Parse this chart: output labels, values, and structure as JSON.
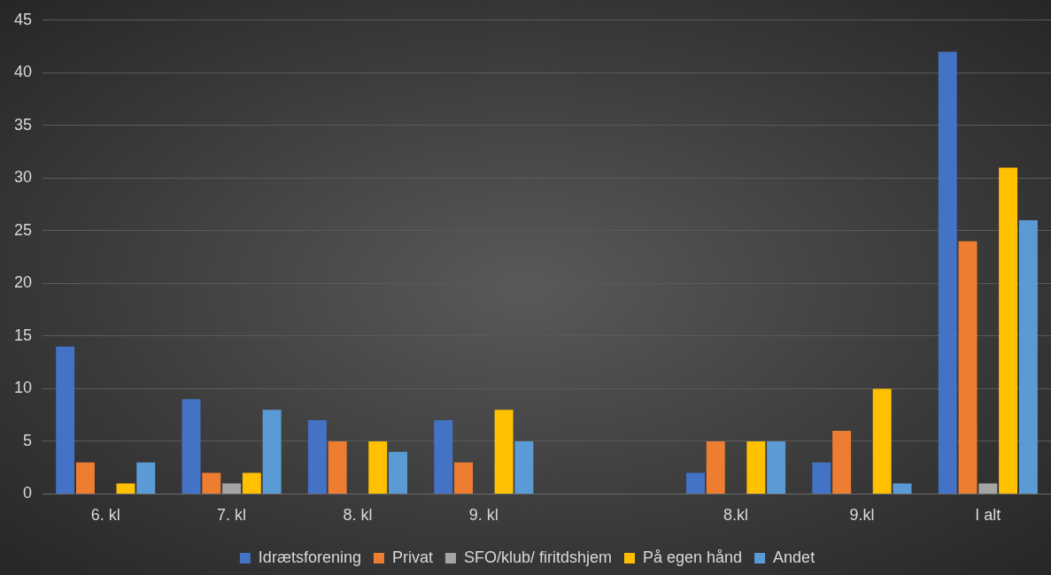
{
  "chart_data": {
    "type": "bar",
    "categories": [
      "6. kl",
      "7. kl",
      "8. kl",
      "9. kl",
      null,
      "8.kl",
      "9.kl",
      "I alt"
    ],
    "series": [
      {
        "name": "Idrætsforening",
        "color": "#4472c4",
        "values": [
          14,
          9,
          7,
          7,
          null,
          2,
          3,
          42
        ]
      },
      {
        "name": "Privat",
        "color": "#ed7d31",
        "values": [
          3,
          2,
          5,
          3,
          null,
          5,
          6,
          24
        ]
      },
      {
        "name": "SFO/klub/ firitdshjem",
        "color": "#a5a5a5",
        "values": [
          0,
          1,
          0,
          0,
          null,
          0,
          0,
          1
        ]
      },
      {
        "name": "På egen hånd",
        "color": "#ffc000",
        "values": [
          1,
          2,
          5,
          8,
          null,
          5,
          10,
          31
        ]
      },
      {
        "name": "Andet",
        "color": "#5b9bd5",
        "values": [
          3,
          8,
          4,
          5,
          null,
          5,
          1,
          26
        ]
      }
    ],
    "ylim": [
      0,
      45
    ],
    "yticks": [
      0,
      5,
      10,
      15,
      20,
      25,
      30,
      35,
      40,
      45
    ],
    "grid": "y",
    "legend": "bottom"
  }
}
